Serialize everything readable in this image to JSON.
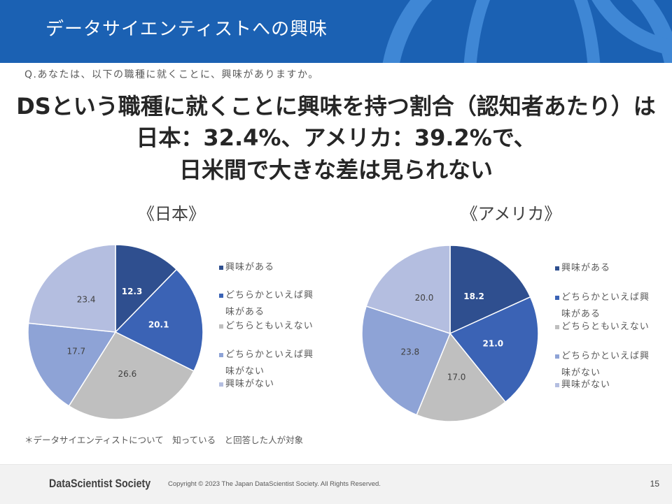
{
  "header": {
    "title": "データサイエンティストへの興味"
  },
  "question": "Q.あなたは、以下の職種に就くことに、興味がありますか。",
  "headline": {
    "line1": "DSという職種に就くことに興味を持つ割合（認知者あたり）は",
    "line2": "日本：32.4%、アメリカ：39.2%で、",
    "line3": "日米間で大きな差は見られない"
  },
  "chart_data": [
    {
      "type": "pie",
      "title": "《日本》",
      "categories": [
        "興味がある",
        "どちらかといえば興味がある",
        "どちらともいえない",
        "どちらかといえば興味がない",
        "興味がない"
      ],
      "values": [
        12.3,
        20.1,
        26.6,
        17.7,
        23.4
      ],
      "data_labels": [
        "12.3",
        "20.1",
        "26.6",
        "17.7",
        "23.4"
      ],
      "colors": [
        "#2f4f8f",
        "#3b63b5",
        "#bfbfbf",
        "#8ea3d6",
        "#b4bee0"
      ],
      "label_colors": [
        "#ffffff",
        "#ffffff",
        "#404040",
        "#404040",
        "#404040"
      ],
      "legend": "right"
    },
    {
      "type": "pie",
      "title": "《アメリカ》",
      "categories": [
        "興味がある",
        "どちらかといえば興味がある",
        "どちらともいえない",
        "どちらかといえば興味がない",
        "興味がない"
      ],
      "values": [
        18.2,
        21.0,
        17.0,
        23.8,
        20.0
      ],
      "data_labels": [
        "18.2",
        "21.0",
        "17.0",
        "23.8",
        "20.0"
      ],
      "colors": [
        "#2f4f8f",
        "#3b63b5",
        "#bfbfbf",
        "#8ea3d6",
        "#b4bee0"
      ],
      "label_colors": [
        "#ffffff",
        "#ffffff",
        "#404040",
        "#404040",
        "#404040"
      ],
      "legend": "right"
    }
  ],
  "footnote": "＊データサイエンティストについて　知っている　と回答した人が対象",
  "footer": {
    "logo": "DataScientist Society",
    "copyright": "Copyright © 2023 The Japan DataScientist Society. All Rights Reserved.",
    "page_number": "15"
  },
  "colors": {
    "header_bg": "#1b61b3",
    "header_arc": "#3f87d5",
    "footer_bg": "#f2f2f2"
  }
}
